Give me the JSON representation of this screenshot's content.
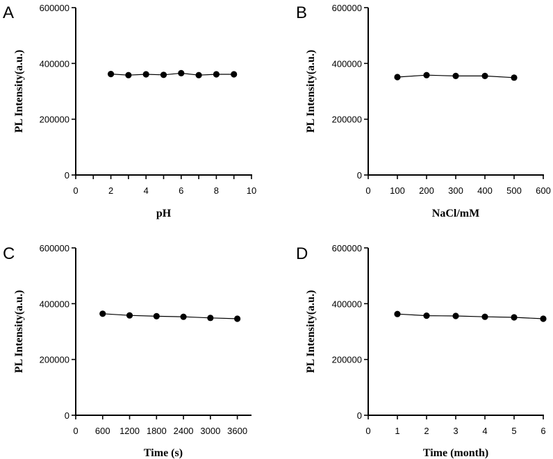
{
  "chart_data": [
    {
      "type": "line",
      "panel": "A",
      "xlabel": "pH",
      "ylabel": "PL Intensity(a.u.)",
      "xlim": [
        0,
        10
      ],
      "ylim": [
        0,
        600000
      ],
      "xticks": [
        0,
        1,
        2,
        3,
        4,
        5,
        6,
        7,
        8,
        9,
        10
      ],
      "xtick_labels": [
        "0",
        "",
        "2",
        "",
        "4",
        "",
        "6",
        "",
        "8",
        "",
        "10"
      ],
      "yticks": [
        0,
        200000,
        400000,
        600000
      ],
      "ytick_labels": [
        "0",
        "200000",
        "400000",
        "600000"
      ],
      "x": [
        2,
        3,
        4,
        5,
        6,
        7,
        8,
        9
      ],
      "y": [
        362000,
        358000,
        361000,
        359000,
        365000,
        358000,
        361000,
        361000
      ]
    },
    {
      "type": "line",
      "panel": "B",
      "xlabel": "NaCl/mM",
      "ylabel": "PL Intensity(a.u.)",
      "xlim": [
        0,
        600
      ],
      "ylim": [
        0,
        600000
      ],
      "xticks": [
        0,
        100,
        200,
        300,
        400,
        500,
        600
      ],
      "xtick_labels": [
        "0",
        "100",
        "200",
        "300",
        "400",
        "500",
        "600"
      ],
      "yticks": [
        0,
        200000,
        400000,
        600000
      ],
      "ytick_labels": [
        "0",
        "200000",
        "400000",
        "600000"
      ],
      "x": [
        100,
        200,
        300,
        400,
        500
      ],
      "y": [
        351000,
        358000,
        355000,
        355000,
        349000
      ]
    },
    {
      "type": "line",
      "panel": "C",
      "xlabel": "Time (s)",
      "ylabel": "PL Intensity(a.u.)",
      "xlim": [
        0,
        3900
      ],
      "ylim": [
        0,
        600000
      ],
      "xticks": [
        0,
        600,
        1200,
        1800,
        2400,
        3000,
        3600
      ],
      "xtick_labels": [
        "0",
        "600",
        "1200",
        "1800",
        "2400",
        "3000",
        "3600"
      ],
      "yticks": [
        0,
        200000,
        400000,
        600000
      ],
      "ytick_labels": [
        "0",
        "200000",
        "400000",
        "600000"
      ],
      "x": [
        600,
        1200,
        1800,
        2400,
        3000,
        3600
      ],
      "y": [
        364000,
        358000,
        355000,
        353000,
        349000,
        346000
      ]
    },
    {
      "type": "line",
      "panel": "D",
      "xlabel": "Time (month)",
      "ylabel": "PL Intensity(a.u.)",
      "xlim": [
        0,
        6
      ],
      "ylim": [
        0,
        600000
      ],
      "xticks": [
        0,
        1,
        2,
        3,
        4,
        5,
        6
      ],
      "xtick_labels": [
        "0",
        "1",
        "2",
        "3",
        "4",
        "5",
        "6"
      ],
      "yticks": [
        0,
        200000,
        400000,
        600000
      ],
      "ytick_labels": [
        "0",
        "200000",
        "400000",
        "600000"
      ],
      "x": [
        1,
        2,
        3,
        4,
        5,
        6
      ],
      "y": [
        363000,
        357000,
        356000,
        353000,
        351000,
        346000
      ]
    }
  ]
}
